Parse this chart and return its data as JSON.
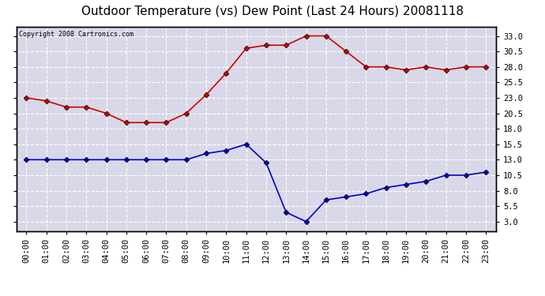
{
  "title": "Outdoor Temperature (vs) Dew Point (Last 24 Hours) 20081118",
  "copyright": "Copyright 2008 Cartronics.com",
  "hours": [
    "00:00",
    "01:00",
    "02:00",
    "03:00",
    "04:00",
    "05:00",
    "06:00",
    "07:00",
    "08:00",
    "09:00",
    "10:00",
    "11:00",
    "12:00",
    "13:00",
    "14:00",
    "15:00",
    "16:00",
    "17:00",
    "18:00",
    "19:00",
    "20:00",
    "21:00",
    "22:00",
    "23:00"
  ],
  "temp": [
    23.0,
    22.5,
    21.5,
    21.5,
    20.5,
    19.0,
    19.0,
    19.0,
    20.5,
    23.5,
    27.0,
    31.0,
    31.5,
    31.5,
    33.0,
    33.0,
    30.5,
    28.0,
    28.0,
    27.5,
    28.0,
    27.5,
    28.0,
    28.0
  ],
  "dew": [
    13.0,
    13.0,
    13.0,
    13.0,
    13.0,
    13.0,
    13.0,
    13.0,
    13.0,
    14.0,
    14.5,
    15.5,
    12.5,
    4.5,
    3.0,
    6.5,
    7.0,
    7.5,
    8.5,
    9.0,
    9.5,
    10.5,
    10.5,
    11.0
  ],
  "temp_color": "#cc0000",
  "dew_color": "#0000cc",
  "bg_color": "#ffffff",
  "plot_bg": "#d8d8e8",
  "grid_color": "#ffffff",
  "yticks": [
    3.0,
    5.5,
    8.0,
    10.5,
    13.0,
    15.5,
    18.0,
    20.5,
    23.0,
    25.5,
    28.0,
    30.5,
    33.0
  ],
  "ymin": 1.5,
  "ymax": 34.5,
  "marker": "D",
  "markersize": 3.5,
  "linewidth": 1.2,
  "title_fontsize": 11,
  "copyright_fontsize": 6,
  "tick_fontsize": 7.5
}
